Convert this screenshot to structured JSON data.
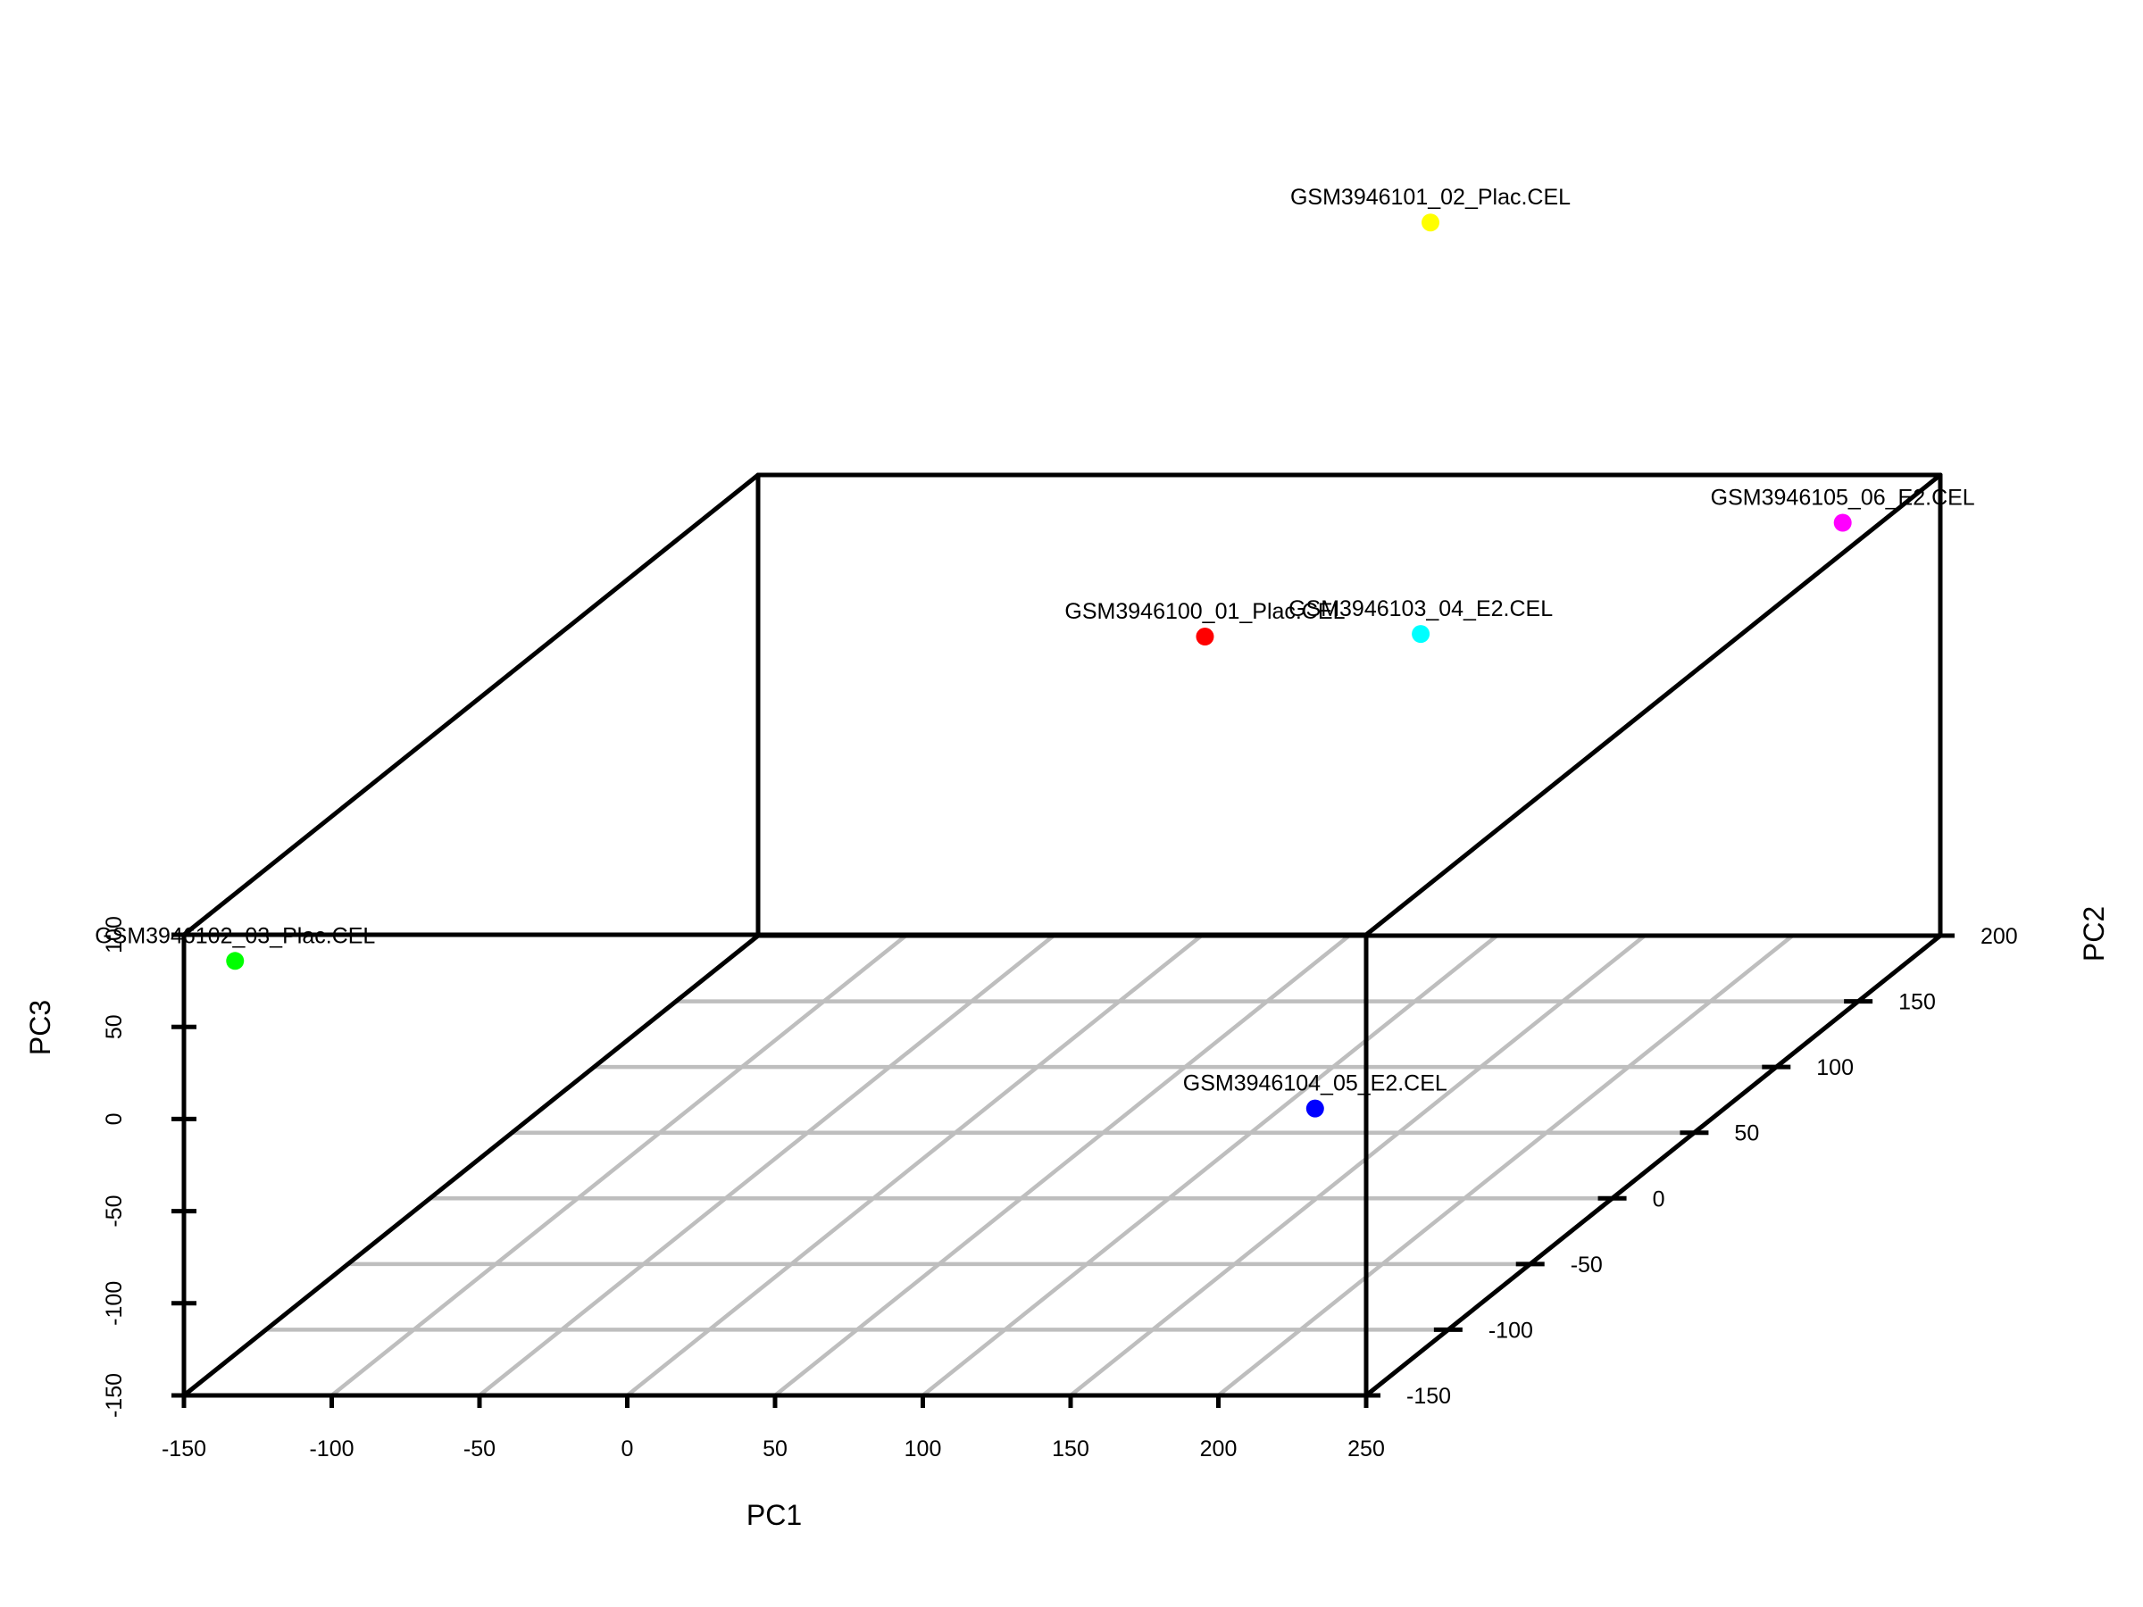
{
  "chart_data": {
    "type": "scatter",
    "subtype": "3d-scatter",
    "xlabel": "PC1",
    "ylabel": "PC2",
    "zlabel": "PC3",
    "xlim": [
      -150,
      250
    ],
    "ylim": [
      -150,
      200
    ],
    "zlim": [
      -150,
      100
    ],
    "xticks": [
      "-150",
      "-100",
      "-50",
      "0",
      "50",
      "100",
      "150",
      "200",
      "250"
    ],
    "yticks": [
      "-150",
      "-100",
      "-50",
      "0",
      "50",
      "100",
      "150",
      "200"
    ],
    "zticks": [
      "-150",
      "-100",
      "-50",
      "0",
      "50",
      "100"
    ],
    "grid": true,
    "grid_plane": "floor (PC1-PC2)",
    "points": [
      {
        "label": "GSM3946100_01_Plac.CEL",
        "x": 1.2,
        "y": 200,
        "z": 12.3,
        "color": "#ff0000"
      },
      {
        "label": "GSM3946101_02_Plac.CEL",
        "x": 77.5,
        "y": 200,
        "z": 237,
        "color": "#ffff00"
      },
      {
        "label": "GSM3946102_03_Plac.CEL",
        "x": -132.7,
        "y": -150,
        "z": 85.8,
        "color": "#00ff00"
      },
      {
        "label": "GSM3946103_04_E2.CEL",
        "x": 74.2,
        "y": 200,
        "z": 13.7,
        "color": "#00ffff"
      },
      {
        "label": "GSM3946104_05_E2.CEL",
        "x": 111.5,
        "y": 68.4,
        "z": -150,
        "color": "#0000ff"
      },
      {
        "label": "GSM3946105_06_E2.CEL",
        "x": 250,
        "y": 140.5,
        "z": 116.5,
        "color": "#ff00ff"
      }
    ]
  }
}
